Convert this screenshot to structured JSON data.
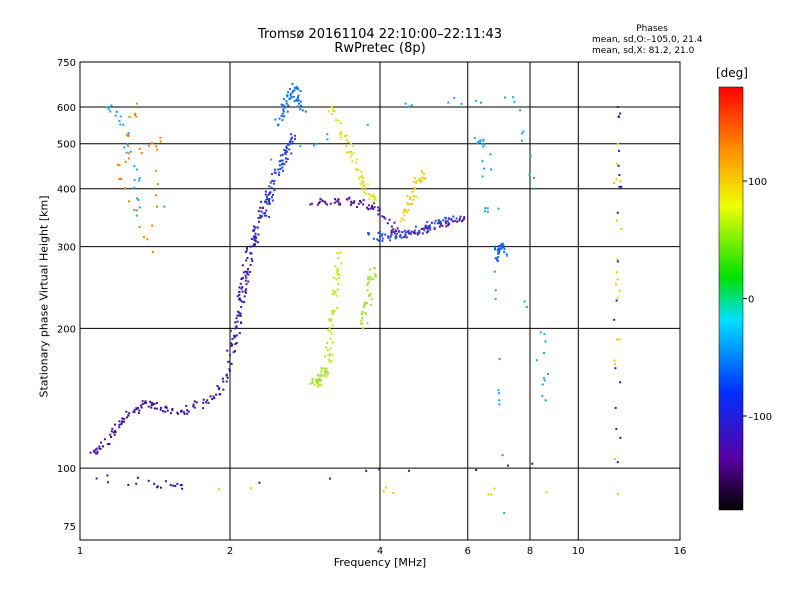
{
  "header": {
    "title_line1": "Tromsø 20161104 22:10:00–22:11:43",
    "title_line2": "RwPretec (8p)"
  },
  "phases_box": {
    "heading": "Phases",
    "line1": "mean, sd,O:–105.0, 21.4",
    "line2": "mean, sd,X:  81.2, 21.0"
  },
  "colorbar": {
    "unit": "[deg]",
    "ticks": [
      {
        "label": "100",
        "value": 100
      },
      {
        "label": "0",
        "value": 0
      },
      {
        "label": "–100",
        "value": -100
      }
    ],
    "range": [
      -180,
      180
    ]
  },
  "chart_data": {
    "type": "scatter",
    "xlabel": "Frequency [MHz]",
    "ylabel": "Stationary phase Virtual Height [km]",
    "xscale": "log",
    "yscale": "log",
    "xlim": [
      1,
      16
    ],
    "ylim": [
      70,
      750
    ],
    "xticks": [
      {
        "label": "1",
        "value": 1
      },
      {
        "label": "2",
        "value": 2
      },
      {
        "label": "4",
        "value": 4
      },
      {
        "label": "6",
        "value": 6
      },
      {
        "label": "8",
        "value": 8
      },
      {
        "label": "10",
        "value": 10
      },
      {
        "label": "16",
        "value": 16
      }
    ],
    "xgrid": [
      2,
      4,
      6,
      8,
      10
    ],
    "yticks": [
      {
        "label": "750",
        "value": 750
      },
      {
        "label": "600",
        "value": 600
      },
      {
        "label": "500",
        "value": 500
      },
      {
        "label": "400",
        "value": 400
      },
      {
        "label": "300",
        "value": 300
      },
      {
        "label": "200",
        "value": 200
      },
      {
        "label": "100",
        "value": 100
      },
      {
        "label": "75",
        "value": 75
      }
    ],
    "ygrid": [
      100,
      200,
      300,
      400,
      500,
      600
    ],
    "grid": true,
    "series": [
      {
        "color": "#4010a0",
        "points": [
          [
            1.05,
            108
          ],
          [
            1.1,
            110
          ],
          [
            1.15,
            118
          ],
          [
            1.2,
            124
          ],
          [
            1.25,
            130
          ],
          [
            1.3,
            134
          ],
          [
            1.35,
            138
          ],
          [
            1.4,
            137
          ],
          [
            1.5,
            133
          ],
          [
            1.6,
            133
          ],
          [
            1.7,
            135
          ],
          [
            1.8,
            140
          ],
          [
            1.9,
            148
          ],
          [
            2.0,
            162
          ],
          [
            2.05,
            185
          ],
          [
            2.1,
            215
          ],
          [
            2.12,
            240
          ],
          [
            2.15,
            265
          ],
          [
            2.2,
            300
          ],
          [
            2.25,
            330
          ]
        ]
      },
      {
        "color": "#3020c0",
        "points": [
          [
            2.0,
            175
          ],
          [
            2.05,
            200
          ],
          [
            2.1,
            230
          ],
          [
            2.15,
            260
          ],
          [
            2.2,
            290
          ],
          [
            2.25,
            320
          ],
          [
            2.3,
            350
          ],
          [
            2.35,
            375
          ],
          [
            2.4,
            390
          ]
        ]
      },
      {
        "color": "#2040e0",
        "points": [
          [
            2.35,
            350
          ],
          [
            2.4,
            380
          ],
          [
            2.45,
            410
          ],
          [
            2.5,
            440
          ],
          [
            2.55,
            460
          ],
          [
            2.6,
            480
          ],
          [
            2.65,
            500
          ],
          [
            2.7,
            520
          ]
        ]
      },
      {
        "color": "#1070f0",
        "points": [
          [
            2.5,
            550
          ],
          [
            2.55,
            580
          ],
          [
            2.6,
            610
          ],
          [
            2.65,
            640
          ],
          [
            2.7,
            660
          ],
          [
            2.75,
            620
          ],
          [
            2.8,
            590
          ]
        ]
      },
      {
        "color": "#5010a0",
        "points": [
          [
            2.9,
            370
          ],
          [
            3.1,
            375
          ],
          [
            3.3,
            375
          ],
          [
            3.5,
            375
          ],
          [
            3.7,
            370
          ],
          [
            3.9,
            365
          ],
          [
            4.1,
            345
          ],
          [
            4.3,
            325
          ],
          [
            4.5,
            318
          ],
          [
            4.8,
            322
          ],
          [
            5.0,
            330
          ],
          [
            5.3,
            335
          ],
          [
            5.6,
            340
          ],
          [
            5.9,
            345
          ]
        ]
      },
      {
        "color": "#2050e0",
        "points": [
          [
            3.8,
            320
          ],
          [
            4.0,
            315
          ],
          [
            4.2,
            315
          ],
          [
            4.4,
            318
          ],
          [
            4.7,
            325
          ],
          [
            5.0,
            332
          ],
          [
            5.3,
            338
          ],
          [
            5.7,
            345
          ]
        ]
      },
      {
        "color": "#d0e020",
        "points": [
          [
            3.0,
            150
          ],
          [
            3.1,
            160
          ],
          [
            3.15,
            175
          ],
          [
            3.2,
            195
          ],
          [
            3.22,
            215
          ],
          [
            3.25,
            240
          ],
          [
            3.28,
            265
          ],
          [
            3.3,
            290
          ]
        ]
      },
      {
        "color": "#a0e030",
        "points": [
          [
            2.9,
            152
          ],
          [
            3.0,
            155
          ],
          [
            3.05,
            158
          ],
          [
            3.1,
            162
          ]
        ]
      },
      {
        "color": "#e0e020",
        "points": [
          [
            3.2,
            600
          ],
          [
            3.3,
            560
          ],
          [
            3.4,
            520
          ],
          [
            3.5,
            480
          ],
          [
            3.6,
            440
          ],
          [
            3.7,
            410
          ],
          [
            3.8,
            390
          ],
          [
            3.9,
            380
          ]
        ]
      },
      {
        "color": "#f0d020",
        "points": [
          [
            4.4,
            340
          ],
          [
            4.5,
            360
          ],
          [
            4.6,
            380
          ],
          [
            4.7,
            400
          ],
          [
            4.8,
            420
          ],
          [
            4.9,
            430
          ]
        ]
      },
      {
        "color": "#a0e030",
        "points": [
          [
            3.7,
            200
          ],
          [
            3.75,
            215
          ],
          [
            3.8,
            235
          ],
          [
            3.85,
            255
          ],
          [
            3.9,
            270
          ]
        ]
      },
      {
        "color": "#1060f0",
        "points": [
          [
            6.8,
            300
          ],
          [
            7.0,
            302
          ],
          [
            7.1,
            292
          ],
          [
            6.9,
            285
          ]
        ]
      },
      {
        "color": "#ff8000",
        "points": [
          [
            1.3,
            610
          ],
          [
            1.2,
            450
          ],
          [
            1.45,
            515
          ],
          [
            1.4,
            292
          ],
          [
            1.2,
            420
          ]
        ]
      },
      {
        "color": "#20a0f0",
        "points": [
          [
            1.15,
            600
          ],
          [
            1.2,
            560
          ],
          [
            1.3,
            440
          ],
          [
            1.3,
            350
          ],
          [
            4.5,
            610
          ],
          [
            7.4,
            630
          ],
          [
            8.2,
            400
          ],
          [
            8.6,
            140
          ],
          [
            6.5,
            500
          ],
          [
            6.3,
            505
          ],
          [
            6.8,
            265
          ],
          [
            7.1,
            80
          ]
        ]
      },
      {
        "color": "#e0d000",
        "points": [
          [
            12.0,
            500
          ],
          [
            12.0,
            255
          ],
          [
            12.0,
            88
          ],
          [
            1.9,
            90
          ]
        ]
      },
      {
        "color": "#2020a0",
        "points": [
          [
            12.0,
            600
          ],
          [
            12.0,
            355
          ],
          [
            12.0,
            103
          ],
          [
            1.25,
            92
          ],
          [
            1.6,
            92
          ],
          [
            1.08,
            95
          ]
        ]
      }
    ]
  }
}
